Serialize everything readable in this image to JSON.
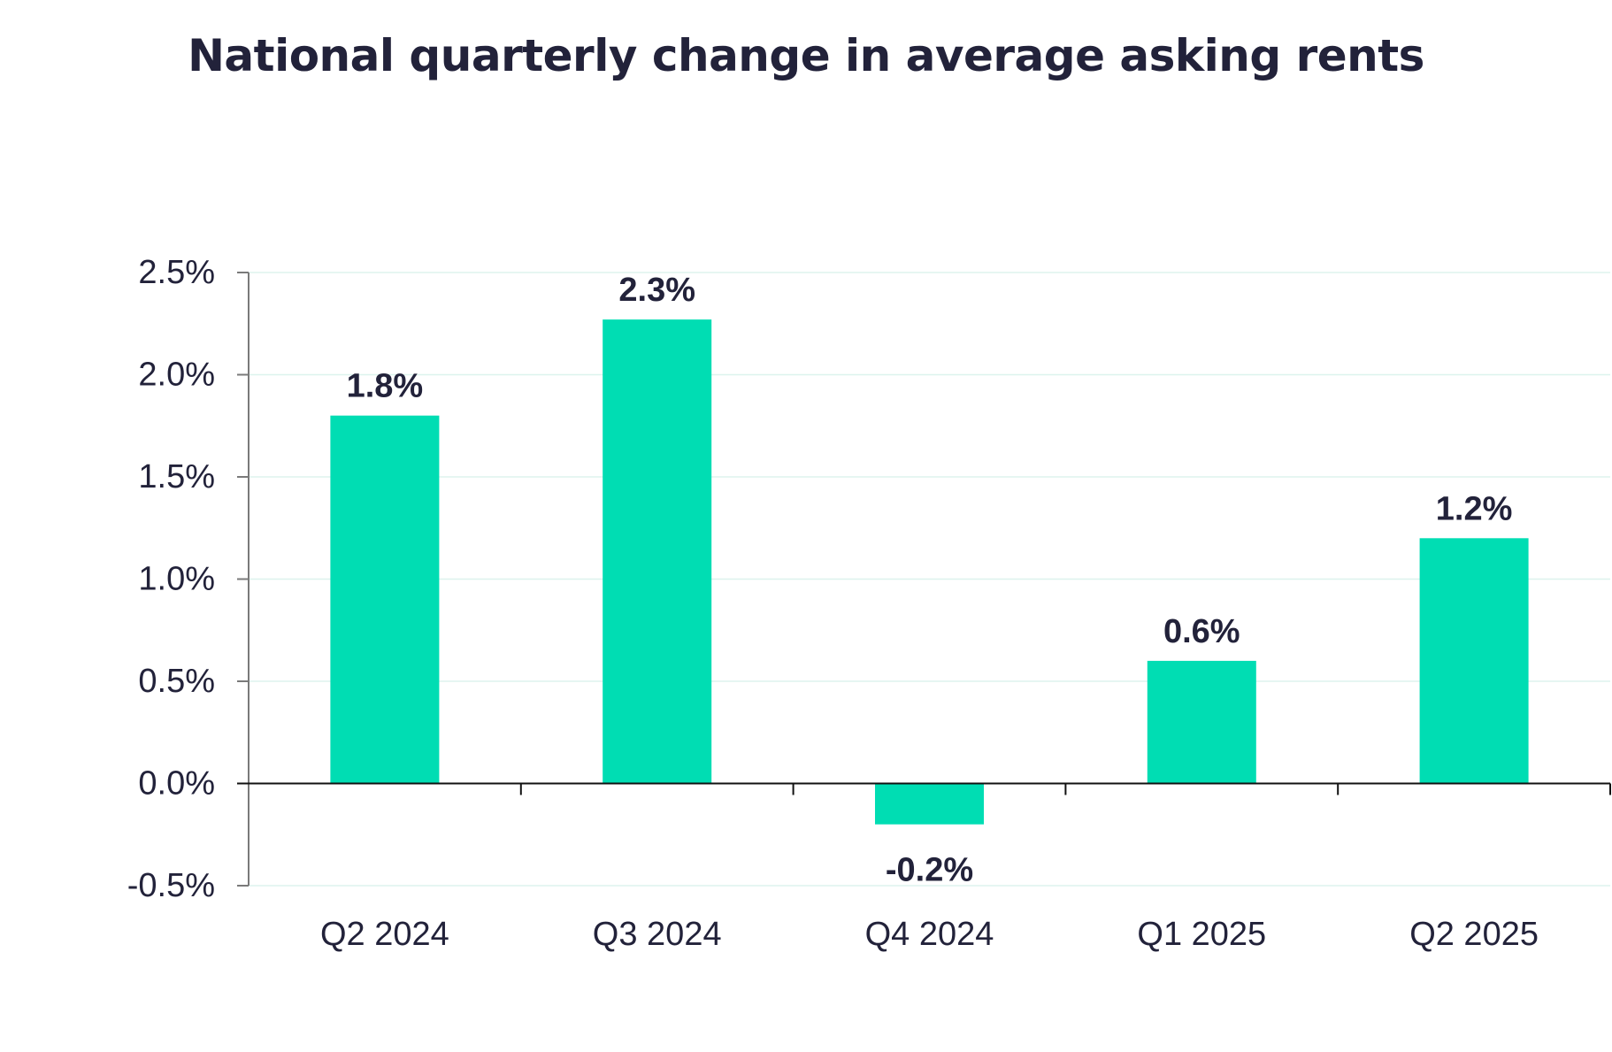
{
  "colors": {
    "bar": "#00DDB3",
    "text": "#22223A",
    "axis": "#7A7A7A",
    "grid": "#DDF3EE"
  },
  "chart_data": {
    "type": "bar",
    "title": "National quarterly change in average asking rents",
    "categories": [
      "Q2 2024",
      "Q3 2024",
      "Q4 2024",
      "Q1 2025",
      "Q2 2025"
    ],
    "values": [
      1.8,
      2.27,
      -0.2,
      0.6,
      1.2
    ],
    "data_labels": [
      "1.8%",
      "2.3%",
      "-0.2%",
      "0.6%",
      "1.2%"
    ],
    "ylim": [
      -0.5,
      2.5
    ],
    "yticks": [
      2.5,
      2.0,
      1.5,
      1.0,
      0.5,
      0.0,
      -0.5
    ],
    "ytick_labels": [
      "2.5%",
      "2.0%",
      "1.5%",
      "1.0%",
      "0.5%",
      "0.0%",
      "-0.5%"
    ],
    "xlabel": "",
    "ylabel": "",
    "grid": true,
    "legend": "none"
  }
}
